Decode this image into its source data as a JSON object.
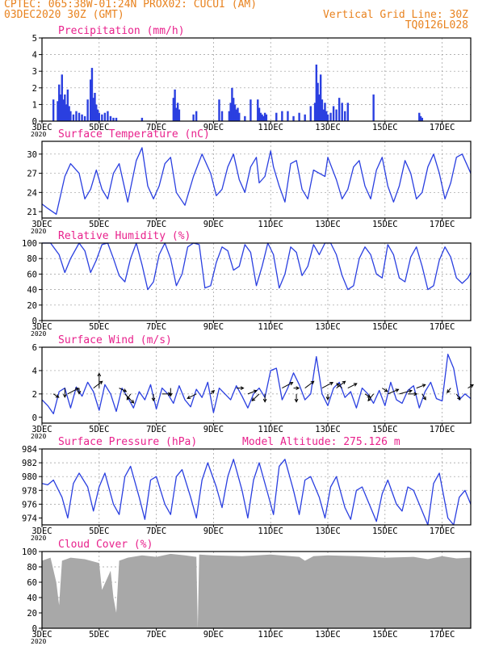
{
  "header": {
    "line1": "CPTEC:   065:38W-01:24N  PROX02: CUCUI (AM)",
    "line2_left": "03DEC2020 30Z (GMT)",
    "line2_right": "Vertical Grid Line: 30Z",
    "line3_right": "TQ0126L028"
  },
  "colors": {
    "header": "#e8821e",
    "title": "#e8218c",
    "series": "#2a3fe0",
    "arrows": "#000000",
    "cloud": "#a8a8a8",
    "grid": "#9a9a9a"
  },
  "x_axis": {
    "ticks": [
      "3DEC",
      "5DEC",
      "7DEC",
      "9DEC",
      "11DEC",
      "13DEC",
      "15DEC",
      "17DEC"
    ],
    "start_year_label": "2020",
    "range_days": [
      3,
      18
    ]
  },
  "chart_data": [
    {
      "id": "precip",
      "type": "bar",
      "title": "Precipitation (mm/h)",
      "ylim": [
        0,
        5
      ],
      "yticks": [
        "0",
        "1",
        "2",
        "3",
        "4",
        "5"
      ],
      "x": [
        3.4,
        3.55,
        3.6,
        3.65,
        3.7,
        3.75,
        3.8,
        3.85,
        3.9,
        3.95,
        4.0,
        4.1,
        4.2,
        4.3,
        4.4,
        4.5,
        4.6,
        4.7,
        4.75,
        4.8,
        4.85,
        4.9,
        4.95,
        5.0,
        5.1,
        5.2,
        5.3,
        5.4,
        5.5,
        5.6,
        6.5,
        7.6,
        7.65,
        7.7,
        7.75,
        7.8,
        8.3,
        8.4,
        9.2,
        9.3,
        9.55,
        9.6,
        9.65,
        9.7,
        9.75,
        9.8,
        9.85,
        9.9,
        10.1,
        10.3,
        10.55,
        10.6,
        10.65,
        10.7,
        10.75,
        10.8,
        10.85,
        11.2,
        11.4,
        11.6,
        11.8,
        12.0,
        12.2,
        12.4,
        12.55,
        12.6,
        12.65,
        12.7,
        12.75,
        12.8,
        12.85,
        12.9,
        12.95,
        13.0,
        13.1,
        13.2,
        13.3,
        13.4,
        13.5,
        13.6,
        13.7,
        14.6,
        16.2,
        16.25,
        16.3
      ],
      "values": [
        1.3,
        1.2,
        2.2,
        1.6,
        2.8,
        1.3,
        1.6,
        1.0,
        1.9,
        0.9,
        0.6,
        0.4,
        0.6,
        0.5,
        0.4,
        0.3,
        1.3,
        2.5,
        3.2,
        1.4,
        1.7,
        1.0,
        0.7,
        0.5,
        0.4,
        0.5,
        0.6,
        0.3,
        0.2,
        0.2,
        0.2,
        1.4,
        1.9,
        0.8,
        1.1,
        0.7,
        0.4,
        0.6,
        1.3,
        0.6,
        0.6,
        1.1,
        2.0,
        1.4,
        1.0,
        0.7,
        0.8,
        0.5,
        0.3,
        1.3,
        1.3,
        0.8,
        0.5,
        0.4,
        0.3,
        0.5,
        0.4,
        0.5,
        0.6,
        0.6,
        0.3,
        0.5,
        0.4,
        0.9,
        1.1,
        3.4,
        2.3,
        1.6,
        2.8,
        1.3,
        0.7,
        1.1,
        0.6,
        0.4,
        0.5,
        0.9,
        0.7,
        1.4,
        1.1,
        0.6,
        1.1,
        1.6,
        0.5,
        0.3,
        0.2
      ]
    },
    {
      "id": "temp",
      "type": "line",
      "title": "Surface Temperature (nC)",
      "ylim": [
        20,
        32
      ],
      "yticks": [
        "21",
        "24",
        "27",
        "30"
      ],
      "ytick_values": [
        21,
        24,
        27,
        30
      ],
      "x": [
        3.0,
        3.2,
        3.5,
        3.8,
        4.0,
        4.3,
        4.5,
        4.7,
        4.9,
        5.1,
        5.3,
        5.5,
        5.7,
        6.0,
        6.3,
        6.5,
        6.7,
        6.9,
        7.1,
        7.3,
        7.5,
        7.7,
        8.0,
        8.3,
        8.6,
        8.9,
        9.1,
        9.3,
        9.5,
        9.7,
        9.9,
        10.1,
        10.3,
        10.5,
        10.6,
        10.8,
        11.0,
        11.1,
        11.3,
        11.5,
        11.7,
        11.9,
        12.1,
        12.3,
        12.5,
        12.7,
        12.9,
        13.0,
        13.3,
        13.5,
        13.7,
        13.9,
        14.1,
        14.3,
        14.5,
        14.7,
        14.9,
        15.1,
        15.3,
        15.5,
        15.7,
        15.9,
        16.1,
        16.3,
        16.5,
        16.7,
        16.9,
        17.1,
        17.3,
        17.5,
        17.7,
        17.9,
        18.0
      ],
      "values": [
        22.2,
        21.5,
        20.6,
        26.5,
        28.5,
        27.0,
        23.0,
        24.5,
        27.5,
        24.5,
        23.0,
        27.0,
        28.5,
        22.5,
        29.0,
        31.0,
        25.0,
        23.0,
        25.0,
        28.5,
        29.5,
        24.0,
        22.0,
        26.5,
        30.0,
        27.0,
        23.5,
        24.5,
        28.0,
        30.0,
        26.0,
        24.0,
        28.0,
        29.5,
        25.5,
        26.5,
        30.5,
        28.0,
        25.0,
        22.5,
        28.5,
        29.0,
        24.5,
        23.0,
        27.5,
        27.0,
        26.5,
        29.5,
        26.0,
        23.0,
        24.5,
        28.0,
        29.0,
        25.0,
        23.0,
        27.5,
        29.5,
        25.0,
        22.5,
        25.0,
        29.0,
        27.0,
        23.0,
        24.0,
        28.0,
        30.0,
        27.0,
        23.0,
        25.5,
        29.5,
        30.0,
        28.0,
        27.0
      ]
    },
    {
      "id": "rh",
      "type": "line",
      "title": "Relative Humidity (%)",
      "ylim": [
        0,
        100
      ],
      "yticks": [
        "0",
        "20",
        "40",
        "60",
        "80",
        "100"
      ],
      "x": [
        3.0,
        3.3,
        3.6,
        3.8,
        4.0,
        4.3,
        4.5,
        4.7,
        4.9,
        5.1,
        5.3,
        5.5,
        5.7,
        5.9,
        6.1,
        6.3,
        6.5,
        6.7,
        6.9,
        7.1,
        7.3,
        7.5,
        7.7,
        7.9,
        8.1,
        8.3,
        8.5,
        8.7,
        8.9,
        9.1,
        9.3,
        9.5,
        9.7,
        9.9,
        10.1,
        10.3,
        10.5,
        10.7,
        10.9,
        11.1,
        11.3,
        11.5,
        11.7,
        11.9,
        12.1,
        12.3,
        12.5,
        12.7,
        12.9,
        13.1,
        13.3,
        13.5,
        13.7,
        13.9,
        14.1,
        14.3,
        14.5,
        14.7,
        14.9,
        15.1,
        15.3,
        15.5,
        15.7,
        15.9,
        16.1,
        16.3,
        16.5,
        16.7,
        16.9,
        17.1,
        17.3,
        17.5,
        17.7,
        17.9,
        18.0
      ],
      "values": [
        100,
        100,
        85,
        62,
        80,
        100,
        90,
        62,
        78,
        98,
        100,
        80,
        58,
        50,
        80,
        100,
        72,
        40,
        50,
        85,
        100,
        80,
        45,
        60,
        95,
        100,
        98,
        42,
        45,
        75,
        95,
        90,
        65,
        70,
        98,
        88,
        45,
        70,
        100,
        85,
        42,
        60,
        95,
        88,
        58,
        70,
        98,
        85,
        100,
        100,
        85,
        58,
        40,
        45,
        80,
        95,
        85,
        60,
        55,
        98,
        85,
        55,
        50,
        82,
        95,
        70,
        40,
        45,
        78,
        95,
        82,
        55,
        48,
        55,
        62
      ]
    },
    {
      "id": "wind",
      "type": "line",
      "title": "Surface Wind (m/s)",
      "ylim": [
        -0.5,
        6
      ],
      "yticks": [
        "0",
        "2",
        "4",
        "6"
      ],
      "ytick_values": [
        0,
        2,
        4,
        6
      ],
      "x": [
        3.0,
        3.2,
        3.4,
        3.6,
        3.8,
        4.0,
        4.2,
        4.4,
        4.6,
        4.8,
        5.0,
        5.2,
        5.4,
        5.6,
        5.8,
        6.0,
        6.2,
        6.4,
        6.6,
        6.8,
        7.0,
        7.2,
        7.4,
        7.6,
        7.8,
        8.0,
        8.2,
        8.4,
        8.6,
        8.8,
        9.0,
        9.2,
        9.4,
        9.6,
        9.8,
        10.0,
        10.2,
        10.4,
        10.6,
        10.8,
        11.0,
        11.2,
        11.4,
        11.6,
        11.8,
        12.0,
        12.2,
        12.4,
        12.6,
        12.8,
        13.0,
        13.2,
        13.4,
        13.6,
        13.8,
        14.0,
        14.2,
        14.4,
        14.6,
        14.8,
        15.0,
        15.2,
        15.4,
        15.6,
        15.8,
        16.0,
        16.2,
        16.4,
        16.6,
        16.8,
        17.0,
        17.2,
        17.4,
        17.6,
        17.8,
        18.0
      ],
      "values": [
        1.5,
        1.0,
        0.3,
        2.2,
        2.5,
        0.8,
        2.6,
        1.8,
        3.0,
        2.2,
        0.6,
        2.8,
        2.0,
        0.5,
        2.5,
        1.7,
        0.8,
        2.2,
        1.5,
        2.8,
        0.7,
        2.5,
        2.0,
        1.2,
        2.7,
        1.5,
        0.9,
        2.4,
        1.7,
        3.0,
        0.4,
        2.5,
        2.0,
        1.5,
        2.7,
        1.8,
        0.8,
        2.0,
        2.5,
        1.7,
        4.0,
        4.2,
        1.5,
        2.5,
        3.8,
        2.8,
        1.5,
        2.0,
        5.2,
        2.0,
        1.0,
        2.5,
        3.0,
        1.7,
        2.2,
        0.8,
        2.5,
        2.0,
        1.2,
        2.3,
        1.0,
        3.0,
        1.5,
        1.2,
        2.3,
        2.7,
        0.8,
        2.2,
        3.0,
        1.6,
        1.4,
        5.4,
        4.2,
        1.5,
        2.0,
        1.6
      ],
      "arrows": {
        "x": [
          3.4,
          3.8,
          3.9,
          4.3,
          4.8,
          5.0,
          5.7,
          5.9,
          6.1,
          6.9,
          7.2,
          7.5,
          8.4,
          8.9,
          9.8,
          10.2,
          10.6,
          10.8,
          11.4,
          11.8,
          11.9,
          12.2,
          12.8,
          13.0,
          13.3,
          13.5,
          13.7,
          14.3,
          14.6,
          14.9,
          15.1,
          15.5,
          15.8,
          16.1,
          16.3,
          17.3,
          17.5,
          17.9
        ],
        "y": [
          2.0,
          2.5,
          2.0,
          2.5,
          2.5,
          2.5,
          2.5,
          2.0,
          2.0,
          2.0,
          2.0,
          2.5,
          2.0,
          2.0,
          2.5,
          2.0,
          2.0,
          2.0,
          2.5,
          2.5,
          2.0,
          2.5,
          2.5,
          2.0,
          2.5,
          2.5,
          2.5,
          2.0,
          2.0,
          2.5,
          2.0,
          2.0,
          2.0,
          2.5,
          2.0,
          2.5,
          2.0,
          2.5
        ],
        "u": [
          0.3,
          0,
          0.6,
          0,
          0.5,
          0,
          0.4,
          0.5,
          -0.2,
          0,
          0.5,
          0,
          -0.5,
          0.2,
          0.4,
          0.5,
          -0.4,
          0,
          0.6,
          0.3,
          0,
          0.5,
          0.6,
          0,
          0.5,
          -0.3,
          0.5,
          0.3,
          -0.3,
          0.3,
          0.6,
          0.7,
          0.5,
          0.5,
          0.2,
          -0.2,
          0.2,
          0.3
        ],
        "v": [
          -0.3,
          -0.8,
          0.5,
          -0.5,
          0.6,
          1.3,
          -0.3,
          -0.8,
          -0.5,
          -0.6,
          0,
          -0.7,
          -0.4,
          0.3,
          0,
          0.3,
          -0.6,
          -0.7,
          0.5,
          0,
          -0.7,
          0.6,
          0.5,
          -0.5,
          0.6,
          0.4,
          0.4,
          -0.3,
          -0.6,
          -0.3,
          0.4,
          0.3,
          0,
          0.3,
          -0.5,
          -0.4,
          -0.5,
          0.3
        ]
      }
    },
    {
      "id": "pres",
      "type": "line",
      "title": "Surface Pressure (hPa)",
      "ylim": [
        973,
        984
      ],
      "annotation": "Model Altitude: 275.126 m",
      "yticks": [
        "974",
        "976",
        "978",
        "980",
        "982",
        "984"
      ],
      "ytick_values": [
        974,
        976,
        978,
        980,
        982,
        984
      ],
      "x": [
        3.0,
        3.2,
        3.4,
        3.7,
        3.9,
        4.1,
        4.3,
        4.6,
        4.8,
        5.0,
        5.2,
        5.5,
        5.7,
        5.9,
        6.1,
        6.4,
        6.6,
        6.8,
        7.0,
        7.3,
        7.5,
        7.7,
        7.9,
        8.2,
        8.4,
        8.6,
        8.8,
        9.1,
        9.3,
        9.5,
        9.7,
        10.0,
        10.2,
        10.4,
        10.6,
        10.9,
        11.1,
        11.3,
        11.5,
        11.8,
        12.0,
        12.2,
        12.4,
        12.7,
        12.9,
        13.1,
        13.3,
        13.6,
        13.8,
        14.0,
        14.2,
        14.5,
        14.7,
        14.9,
        15.1,
        15.4,
        15.6,
        15.8,
        16.0,
        16.3,
        16.5,
        16.7,
        16.9,
        17.2,
        17.4,
        17.6,
        17.8,
        18.0
      ],
      "values": [
        979.0,
        978.8,
        979.5,
        977.0,
        974.0,
        979.0,
        980.5,
        978.5,
        975.0,
        978.5,
        980.5,
        976.0,
        974.5,
        980.0,
        981.5,
        977.0,
        973.8,
        979.5,
        980.0,
        976.0,
        974.5,
        980.0,
        981.0,
        977.0,
        974.0,
        979.5,
        982.0,
        978.5,
        975.5,
        980.0,
        982.5,
        978.0,
        974.0,
        979.5,
        982.0,
        977.5,
        974.5,
        981.5,
        982.5,
        978.0,
        974.5,
        979.5,
        980.0,
        977.0,
        974.0,
        978.5,
        980.0,
        975.5,
        973.8,
        978.0,
        978.5,
        975.5,
        973.5,
        977.5,
        979.5,
        976.0,
        975.0,
        978.5,
        978.0,
        975.0,
        973.0,
        979.0,
        980.5,
        974.0,
        973.0,
        977.0,
        978.0,
        976.0
      ]
    },
    {
      "id": "cloud",
      "type": "area",
      "title": "Cloud Cover (%)",
      "ylim": [
        0,
        100
      ],
      "yticks": [
        "0",
        "20",
        "40",
        "60",
        "80",
        "100"
      ],
      "x": [
        3.0,
        3.3,
        3.5,
        3.6,
        3.7,
        4.0,
        4.5,
        5.0,
        5.1,
        5.4,
        5.5,
        5.6,
        5.7,
        6.0,
        6.5,
        7.0,
        7.5,
        8.0,
        8.4,
        8.45,
        8.5,
        9.0,
        10.0,
        11.0,
        12.0,
        12.2,
        12.5,
        13.0,
        14.0,
        15.0,
        16.0,
        16.5,
        17.0,
        17.5,
        18.0
      ],
      "values": [
        88,
        92,
        60,
        30,
        88,
        92,
        90,
        85,
        50,
        75,
        40,
        20,
        88,
        92,
        95,
        93,
        97,
        95,
        93,
        0,
        96,
        95,
        94,
        96,
        93,
        88,
        94,
        95,
        94,
        92,
        93,
        90,
        94,
        91,
        92
      ]
    }
  ]
}
